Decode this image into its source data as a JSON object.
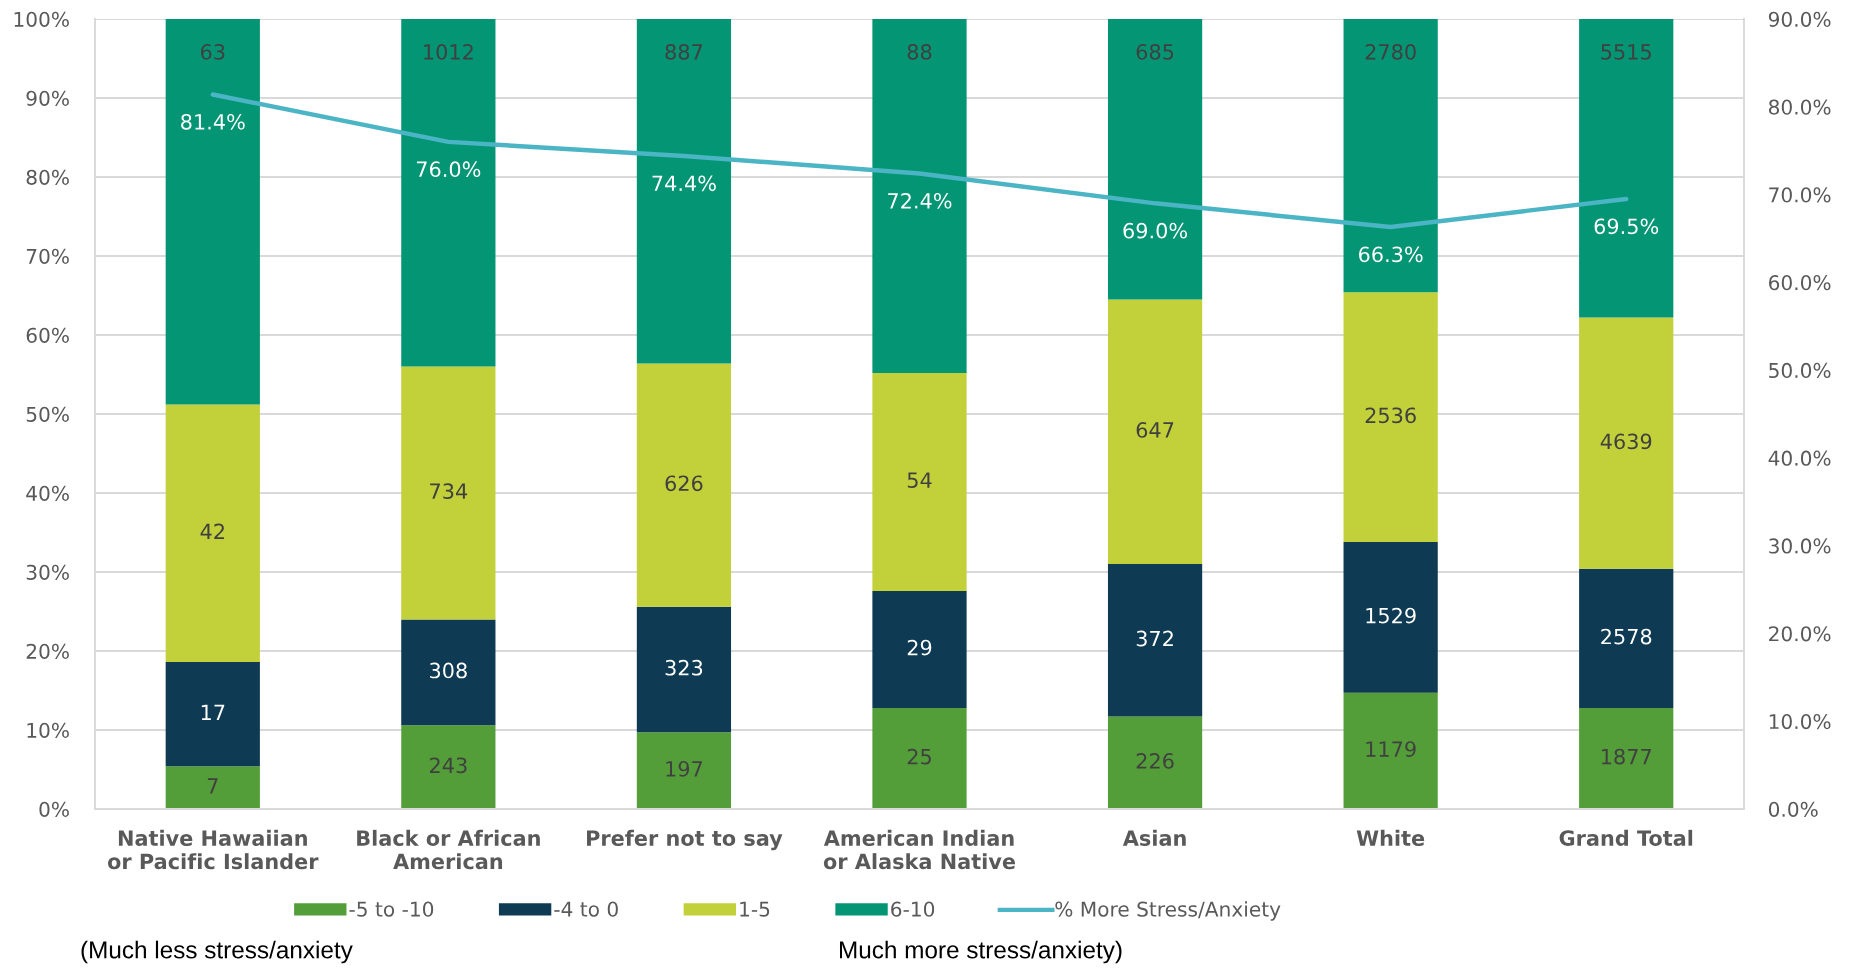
{
  "chart_data": {
    "type": "bar",
    "stacked": true,
    "categories": [
      "Native Hawaiian\nor Pacific Islander",
      "Black or African\nAmerican",
      "Prefer not to say",
      "American Indian\nor Alaska Native",
      "Asian",
      "White",
      "Grand Total"
    ],
    "series": [
      {
        "name": "-5 to -10",
        "color": "#549e39",
        "values": [
          5.4,
          10.6,
          9.7,
          12.8,
          11.7,
          14.7,
          12.8
        ]
      },
      {
        "name": "-4 to 0",
        "color": "#0e3a53",
        "values": [
          13.2,
          13.4,
          15.9,
          14.8,
          19.3,
          19.1,
          17.6
        ]
      },
      {
        "name": "1-5",
        "color": "#c2d03a",
        "values": [
          32.6,
          32.0,
          30.8,
          27.6,
          33.5,
          31.6,
          31.8
        ]
      },
      {
        "name": "6-10",
        "color": "#039574",
        "values": [
          48.8,
          44.0,
          43.6,
          44.8,
          35.5,
          34.6,
          37.8
        ]
      },
      {
        "name": "% More Stress/Anxiety",
        "type": "line",
        "axis": "y2",
        "color": "#4bb4c5",
        "values": [
          81.4,
          76.0,
          74.4,
          72.4,
          69.0,
          66.3,
          69.5
        ],
        "value_labels": [
          "81.4%",
          "76.0%",
          "74.4%",
          "72.4%",
          "69.0%",
          "66.3%",
          "69.5%"
        ]
      }
    ],
    "ylim": [
      0,
      100
    ],
    "yticks": [
      {
        "value": 0,
        "label": "0%"
      },
      {
        "value": 10,
        "label": "10%"
      },
      {
        "value": 20,
        "label": "20%"
      },
      {
        "value": 30,
        "label": "30%"
      },
      {
        "value": 40,
        "label": "40%"
      },
      {
        "value": 50,
        "label": "50%"
      },
      {
        "value": 60,
        "label": "60%"
      },
      {
        "value": 70,
        "label": "70%"
      },
      {
        "value": 80,
        "label": "80%"
      },
      {
        "value": 90,
        "label": "90%"
      },
      {
        "value": 100,
        "label": "100%"
      }
    ],
    "y2lim": [
      0,
      90
    ],
    "y2ticks": [
      {
        "value": 0,
        "label": "0.0%"
      },
      {
        "value": 10,
        "label": "10.0%"
      },
      {
        "value": 20,
        "label": "20.0%"
      },
      {
        "value": 30,
        "label": "30.0%"
      },
      {
        "value": 40,
        "label": "40.0%"
      },
      {
        "value": 50,
        "label": "50.0%"
      },
      {
        "value": 60,
        "label": "60.0%"
      },
      {
        "value": 70,
        "label": "70.0%"
      },
      {
        "value": 80,
        "label": "80.0%"
      },
      {
        "value": 90,
        "label": "90.0%"
      }
    ],
    "grid": "y",
    "legend": "bottom",
    "annotations": [
      "7",
      "243",
      "197",
      "25",
      "226",
      "1179",
      "1877",
      "17",
      "308",
      "323",
      "29",
      "372",
      "1529",
      "2578",
      "42",
      "734",
      "626",
      "54",
      "647",
      "2536",
      "4639",
      "63",
      "1012",
      "887",
      "88",
      "685",
      "2780",
      "5515",
      "(Much less stress/anxiety",
      "Much more stress/anxiety)"
    ]
  }
}
